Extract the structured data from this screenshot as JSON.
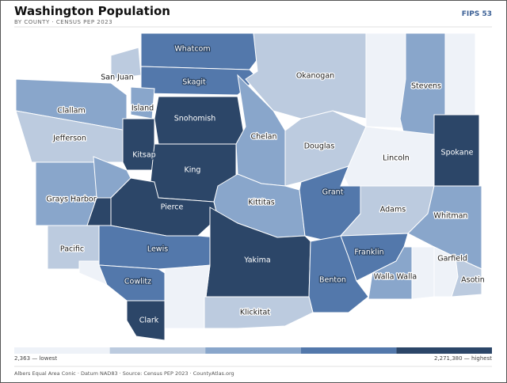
{
  "header": {
    "title": "Washington Population",
    "subtitle": "BY COUNTY · CENSUS PEP 2023",
    "badge": "FIPS 53"
  },
  "legend": {
    "colors": [
      "#eef2f8",
      "#bccbdf",
      "#89a6cb",
      "#5378ab",
      "#2c4668"
    ],
    "min_label": "2,363 — lowest",
    "max_label": "2,271,380 — highest"
  },
  "counties": [
    {
      "name": "Whatcom",
      "class": 3
    },
    {
      "name": "San Juan",
      "class": 1
    },
    {
      "name": "Skagit",
      "class": 3
    },
    {
      "name": "Island",
      "class": 2
    },
    {
      "name": "Snohomish",
      "class": 4
    },
    {
      "name": "Okanogan",
      "class": 1
    },
    {
      "class": 0
    },
    {
      "name": "Stevens",
      "class": 2
    },
    {
      "class": 0
    },
    {
      "name": "Clallam",
      "class": 2
    },
    {
      "name": "Jefferson",
      "class": 1
    },
    {
      "name": "Kitsap",
      "class": 4
    },
    {
      "name": "King",
      "class": 4
    },
    {
      "name": "Chelan",
      "class": 2
    },
    {
      "name": "Douglas",
      "class": 1
    },
    {
      "name": "Lincoln",
      "class": 0
    },
    {
      "name": "Spokane",
      "class": 4
    },
    {
      "name": "Grays Harbor",
      "class": 2
    },
    {
      "class": 2
    },
    {
      "name": "Pierce",
      "class": 4
    },
    {
      "class": 4
    },
    {
      "name": "Kittitas",
      "class": 2
    },
    {
      "name": "Grant",
      "class": 3
    },
    {
      "name": "Adams",
      "class": 1
    },
    {
      "name": "Whitman",
      "class": 2
    },
    {
      "name": "Pacific",
      "class": 1
    },
    {
      "class": 0
    },
    {
      "name": "Lewis",
      "class": 3
    },
    {
      "name": "Yakima",
      "class": 4
    },
    {
      "name": "Franklin",
      "class": 3
    },
    {
      "name": "Benton",
      "class": 3
    },
    {
      "name": "Walla Walla",
      "class": 2
    },
    {
      "class": 0
    },
    {
      "name": "Garfield",
      "class": 0
    },
    {
      "name": "Asotin",
      "class": 1
    },
    {
      "name": "Cowlitz",
      "class": 3
    },
    {
      "class": 0
    },
    {
      "name": "Clark",
      "class": 4
    },
    {
      "name": "Klickitat",
      "class": 1
    }
  ],
  "footer": "Albers Equal Area Conic · Datum NAD83 · Source: Census PEP 2023 · CountyAtlas.org"
}
